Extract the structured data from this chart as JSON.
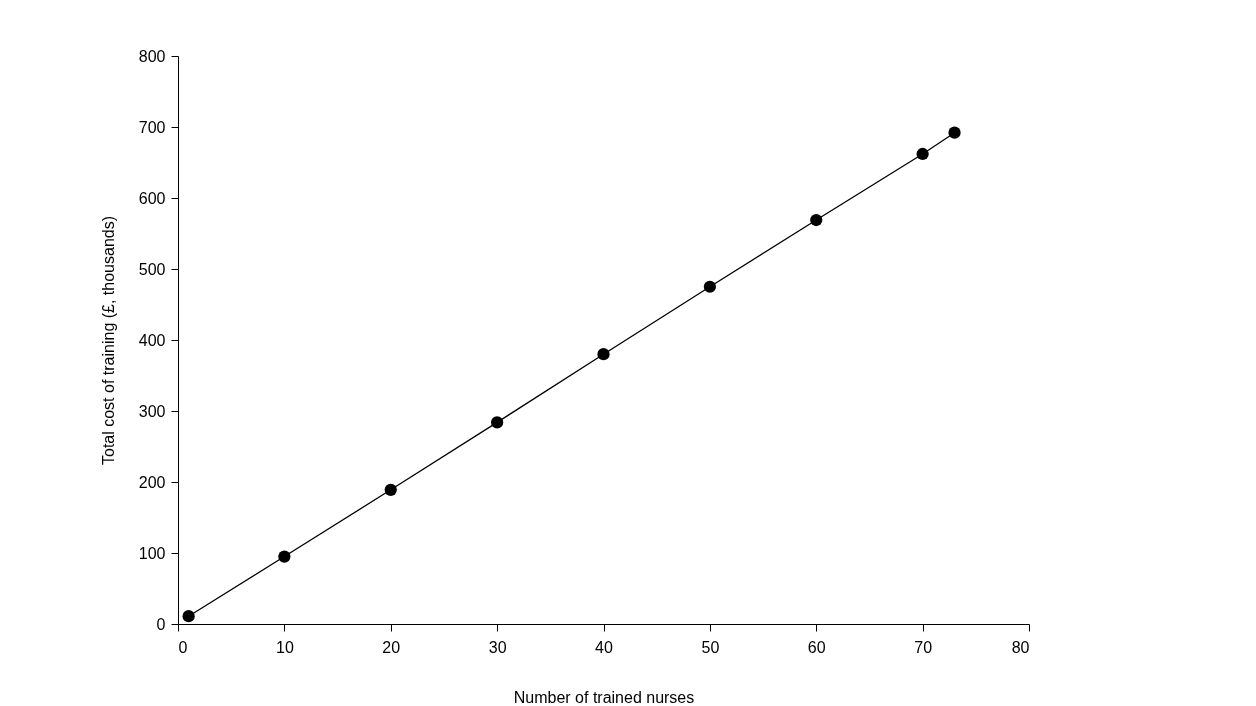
{
  "chart_data": {
    "type": "line",
    "xlabel": "Number of trained nurses",
    "ylabel": "Total cost of training (£, thousands)",
    "x": [
      1,
      10,
      20,
      30,
      40,
      50,
      60,
      70,
      73
    ],
    "series": [
      {
        "color": "#000000",
        "values": [
          11,
          95,
          189,
          284,
          380,
          475,
          569,
          662,
          692
        ]
      }
    ],
    "xlim": [
      0,
      80
    ],
    "xticks": [
      0,
      10,
      20,
      30,
      40,
      50,
      60,
      70,
      80
    ],
    "ylim": [
      0,
      800
    ],
    "yticks": [
      0,
      100,
      200,
      300,
      400,
      500,
      600,
      700,
      800
    ],
    "grid": false,
    "legend": false,
    "marker": "circle",
    "line_style": "solid"
  }
}
